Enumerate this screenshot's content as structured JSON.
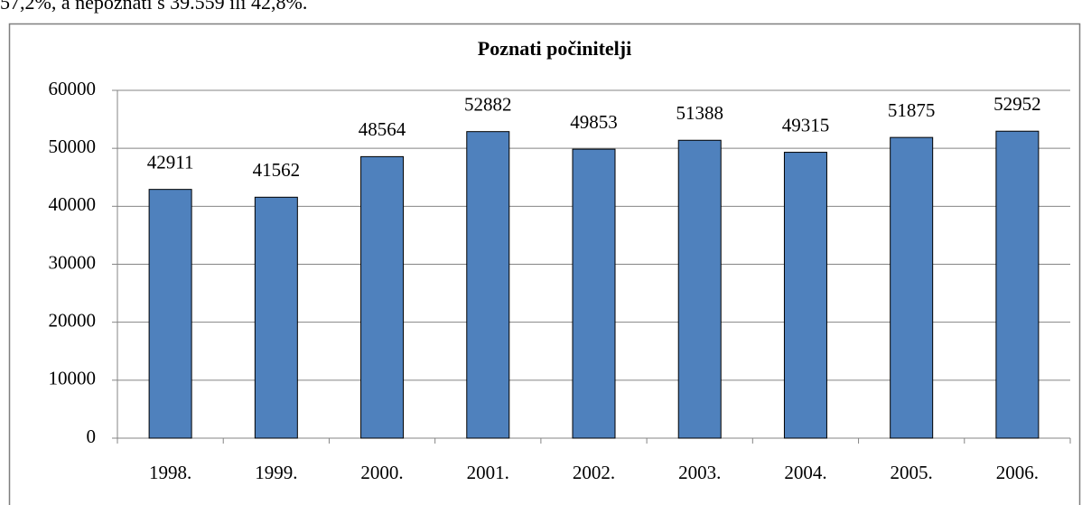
{
  "lead_text": "57,2%, a nepoznati s 39.559 ili 42,8%.",
  "chart_data": {
    "type": "bar",
    "title": "Poznati počinitelji",
    "categories": [
      "1998.",
      "1999.",
      "2000.",
      "2001.",
      "2002.",
      "2003.",
      "2004.",
      "2005.",
      "2006."
    ],
    "values": [
      42911,
      41562,
      48564,
      52882,
      49853,
      51388,
      49315,
      51875,
      52952
    ],
    "color": "#4f81bd",
    "ylim": [
      0,
      60000
    ],
    "yticks": [
      0,
      10000,
      20000,
      30000,
      40000,
      50000,
      60000
    ],
    "grid": true,
    "data_labels": true
  }
}
